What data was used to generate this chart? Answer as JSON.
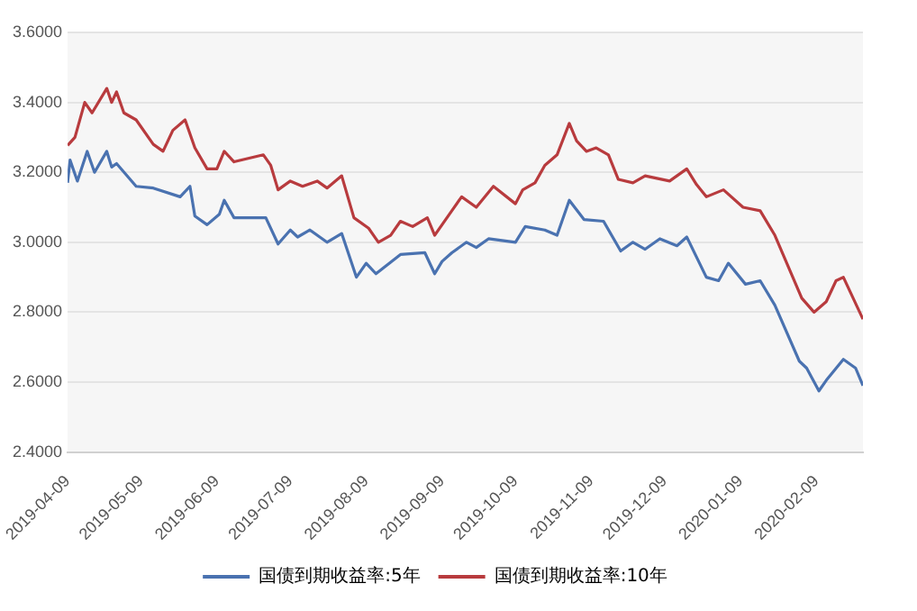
{
  "chart_data": {
    "type": "line",
    "xlim": [
      "2019-04-09",
      "2020-02-28"
    ],
    "xticks": [
      "2019-04-09",
      "2019-05-09",
      "2019-06-09",
      "2019-07-09",
      "2019-08-09",
      "2019-09-09",
      "2019-10-09",
      "2019-11-09",
      "2019-12-09",
      "2020-01-09",
      "2020-02-09"
    ],
    "ylim": [
      2.4,
      3.6
    ],
    "yticks": [
      {
        "value": 2.4,
        "label": "2.4000"
      },
      {
        "value": 2.6,
        "label": "2.6000"
      },
      {
        "value": 2.8,
        "label": "2.8000"
      },
      {
        "value": 3.0,
        "label": "3.0000"
      },
      {
        "value": 3.2,
        "label": "3.2000"
      },
      {
        "value": 3.4,
        "label": "3.4000"
      },
      {
        "value": 3.6,
        "label": "3.6000"
      }
    ],
    "grid": "y",
    "legend": "bottom",
    "marker": "none",
    "line_style": "solid",
    "series": [
      {
        "name": "国债到期收益率:5年",
        "color": "#4a72b0",
        "x": [
          "2019-04-09",
          "2019-04-10",
          "2019-04-13",
          "2019-04-17",
          "2019-04-20",
          "2019-04-25",
          "2019-04-27",
          "2019-04-29",
          "2019-05-07",
          "2019-05-14",
          "2019-05-25",
          "2019-05-29",
          "2019-05-31",
          "2019-06-05",
          "2019-06-10",
          "2019-06-12",
          "2019-06-16",
          "2019-06-29",
          "2019-07-04",
          "2019-07-09",
          "2019-07-12",
          "2019-07-17",
          "2019-07-24",
          "2019-07-30",
          "2019-08-05",
          "2019-08-09",
          "2019-08-13",
          "2019-08-23",
          "2019-09-02",
          "2019-09-06",
          "2019-09-09",
          "2019-09-13",
          "2019-09-19",
          "2019-09-23",
          "2019-09-28",
          "2019-10-09",
          "2019-10-13",
          "2019-10-21",
          "2019-10-26",
          "2019-10-31",
          "2019-11-06",
          "2019-11-14",
          "2019-11-21",
          "2019-11-26",
          "2019-12-01",
          "2019-12-07",
          "2019-12-14",
          "2019-12-18",
          "2019-12-26",
          "2019-12-31",
          "2020-01-04",
          "2020-01-11",
          "2020-01-17",
          "2020-01-23",
          "2020-02-02",
          "2020-02-05",
          "2020-02-10",
          "2020-02-13",
          "2020-02-20",
          "2020-02-25",
          "2020-02-28"
        ],
        "values": [
          3.17,
          3.235,
          3.175,
          3.26,
          3.2,
          3.26,
          3.215,
          3.225,
          3.16,
          3.155,
          3.13,
          3.16,
          3.075,
          3.05,
          3.08,
          3.12,
          3.07,
          3.07,
          2.995,
          3.035,
          3.015,
          3.035,
          3.0,
          3.025,
          2.9,
          2.94,
          2.91,
          2.965,
          2.97,
          2.91,
          2.945,
          2.97,
          3.0,
          2.985,
          3.01,
          3.0,
          3.045,
          3.035,
          3.02,
          3.12,
          3.065,
          3.06,
          2.975,
          3.0,
          2.98,
          3.01,
          2.99,
          3.015,
          2.9,
          2.89,
          2.94,
          2.88,
          2.89,
          2.82,
          2.66,
          2.64,
          2.575,
          2.605,
          2.665,
          2.64,
          2.59
        ]
      },
      {
        "name": "国债到期收益率:10年",
        "color": "#b83b3e",
        "x": [
          "2019-04-09",
          "2019-04-12",
          "2019-04-16",
          "2019-04-19",
          "2019-04-25",
          "2019-04-27",
          "2019-04-29",
          "2019-05-02",
          "2019-05-07",
          "2019-05-14",
          "2019-05-18",
          "2019-05-22",
          "2019-05-27",
          "2019-05-31",
          "2019-06-05",
          "2019-06-09",
          "2019-06-12",
          "2019-06-16",
          "2019-06-28",
          "2019-07-01",
          "2019-07-04",
          "2019-07-09",
          "2019-07-14",
          "2019-07-20",
          "2019-07-24",
          "2019-07-30",
          "2019-08-04",
          "2019-08-10",
          "2019-08-14",
          "2019-08-19",
          "2019-08-23",
          "2019-08-28",
          "2019-09-03",
          "2019-09-06",
          "2019-09-13",
          "2019-09-17",
          "2019-09-23",
          "2019-09-30",
          "2019-10-09",
          "2019-10-12",
          "2019-10-17",
          "2019-10-21",
          "2019-10-26",
          "2019-10-31",
          "2019-11-03",
          "2019-11-07",
          "2019-11-11",
          "2019-11-16",
          "2019-11-20",
          "2019-11-26",
          "2019-12-01",
          "2019-12-11",
          "2019-12-18",
          "2019-12-22",
          "2019-12-26",
          "2020-01-02",
          "2020-01-10",
          "2020-01-17",
          "2020-01-23",
          "2020-02-03",
          "2020-02-08",
          "2020-02-13",
          "2020-02-17",
          "2020-02-20",
          "2020-02-28"
        ],
        "values": [
          3.277,
          3.3,
          3.4,
          3.37,
          3.44,
          3.4,
          3.43,
          3.37,
          3.35,
          3.28,
          3.26,
          3.32,
          3.35,
          3.27,
          3.21,
          3.21,
          3.26,
          3.23,
          3.25,
          3.22,
          3.15,
          3.175,
          3.16,
          3.175,
          3.155,
          3.19,
          3.07,
          3.04,
          3.0,
          3.02,
          3.06,
          3.045,
          3.07,
          3.02,
          3.09,
          3.13,
          3.1,
          3.16,
          3.11,
          3.15,
          3.17,
          3.22,
          3.25,
          3.34,
          3.29,
          3.26,
          3.27,
          3.25,
          3.18,
          3.17,
          3.19,
          3.175,
          3.21,
          3.165,
          3.13,
          3.15,
          3.1,
          3.09,
          3.02,
          2.84,
          2.8,
          2.83,
          2.89,
          2.9,
          2.78
        ]
      }
    ]
  }
}
